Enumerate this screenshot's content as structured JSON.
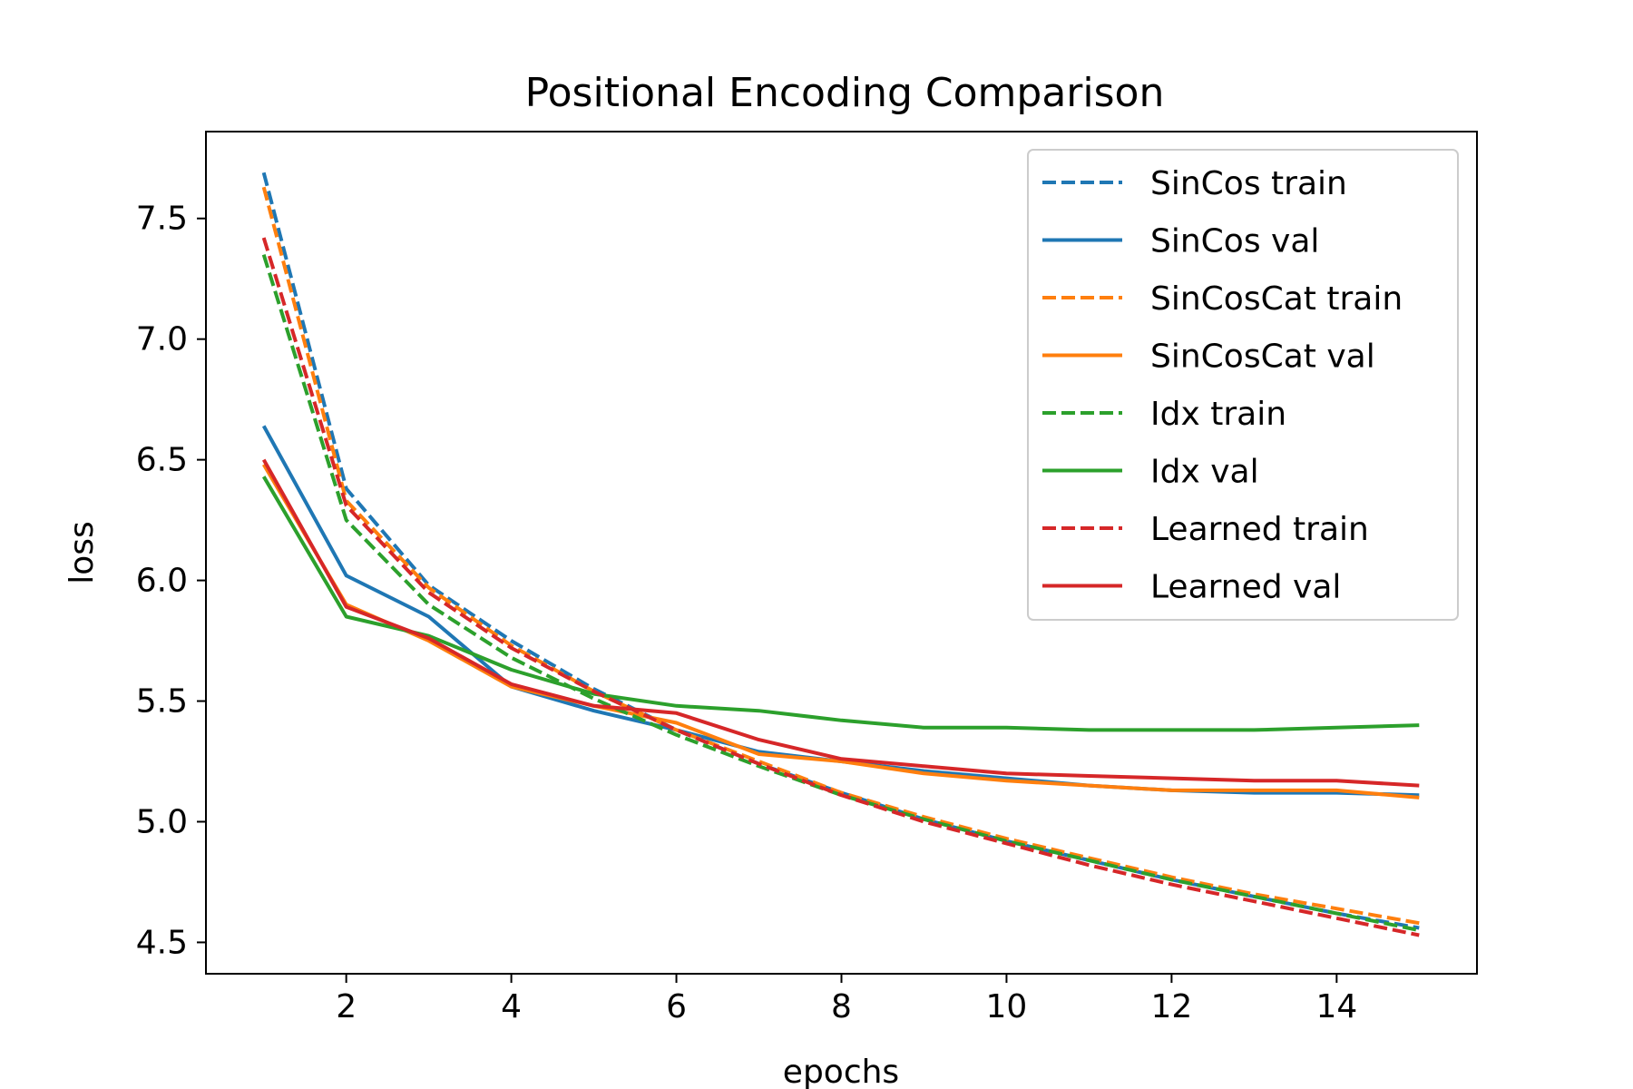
{
  "chart_data": {
    "type": "line",
    "title": "Positional Encoding Comparison",
    "xlabel": "epochs",
    "ylabel": "loss",
    "xlim": [
      0.3,
      15.7
    ],
    "ylim": [
      4.37,
      7.86
    ],
    "xticks": [
      2,
      4,
      6,
      8,
      10,
      12,
      14
    ],
    "yticks": [
      4.5,
      5.0,
      5.5,
      6.0,
      6.5,
      7.0,
      7.5
    ],
    "grid": false,
    "legend_position": "top-right",
    "x": [
      1,
      2,
      3,
      4,
      5,
      6,
      7,
      8,
      9,
      10,
      11,
      12,
      13,
      14,
      15
    ],
    "series": [
      {
        "name": "SinCos train",
        "style": "dashed",
        "color": "#1f77b4",
        "values": [
          7.69,
          6.38,
          5.98,
          5.75,
          5.55,
          5.38,
          5.24,
          5.12,
          5.01,
          4.92,
          4.84,
          4.76,
          4.69,
          4.62,
          4.56
        ]
      },
      {
        "name": "SinCos val",
        "style": "solid",
        "color": "#1f77b4",
        "values": [
          6.64,
          6.02,
          5.85,
          5.56,
          5.46,
          5.38,
          5.29,
          5.25,
          5.21,
          5.18,
          5.15,
          5.13,
          5.12,
          5.12,
          5.11
        ]
      },
      {
        "name": "SinCosCat train",
        "style": "dashed",
        "color": "#ff7f0e",
        "values": [
          7.63,
          6.33,
          5.97,
          5.73,
          5.54,
          5.38,
          5.25,
          5.12,
          5.02,
          4.93,
          4.85,
          4.77,
          4.7,
          4.64,
          4.58
        ]
      },
      {
        "name": "SinCosCat val",
        "style": "solid",
        "color": "#ff7f0e",
        "values": [
          6.48,
          5.9,
          5.75,
          5.56,
          5.48,
          5.41,
          5.28,
          5.25,
          5.2,
          5.17,
          5.15,
          5.13,
          5.13,
          5.13,
          5.1
        ]
      },
      {
        "name": "Idx train",
        "style": "dashed",
        "color": "#2ca02c",
        "values": [
          7.35,
          6.25,
          5.9,
          5.68,
          5.51,
          5.36,
          5.23,
          5.11,
          5.01,
          4.92,
          4.84,
          4.76,
          4.69,
          4.62,
          4.55
        ]
      },
      {
        "name": "Idx val",
        "style": "solid",
        "color": "#2ca02c",
        "values": [
          6.43,
          5.85,
          5.77,
          5.63,
          5.53,
          5.48,
          5.46,
          5.42,
          5.39,
          5.39,
          5.38,
          5.38,
          5.38,
          5.39,
          5.4
        ]
      },
      {
        "name": "Learned train",
        "style": "dashed",
        "color": "#d62728",
        "values": [
          7.42,
          6.31,
          5.95,
          5.72,
          5.54,
          5.38,
          5.24,
          5.11,
          5.0,
          4.91,
          4.82,
          4.74,
          4.67,
          4.6,
          4.53
        ]
      },
      {
        "name": "Learned val",
        "style": "solid",
        "color": "#d62728",
        "values": [
          6.5,
          5.89,
          5.76,
          5.57,
          5.48,
          5.45,
          5.34,
          5.26,
          5.23,
          5.2,
          5.19,
          5.18,
          5.17,
          5.17,
          5.15
        ]
      }
    ]
  }
}
